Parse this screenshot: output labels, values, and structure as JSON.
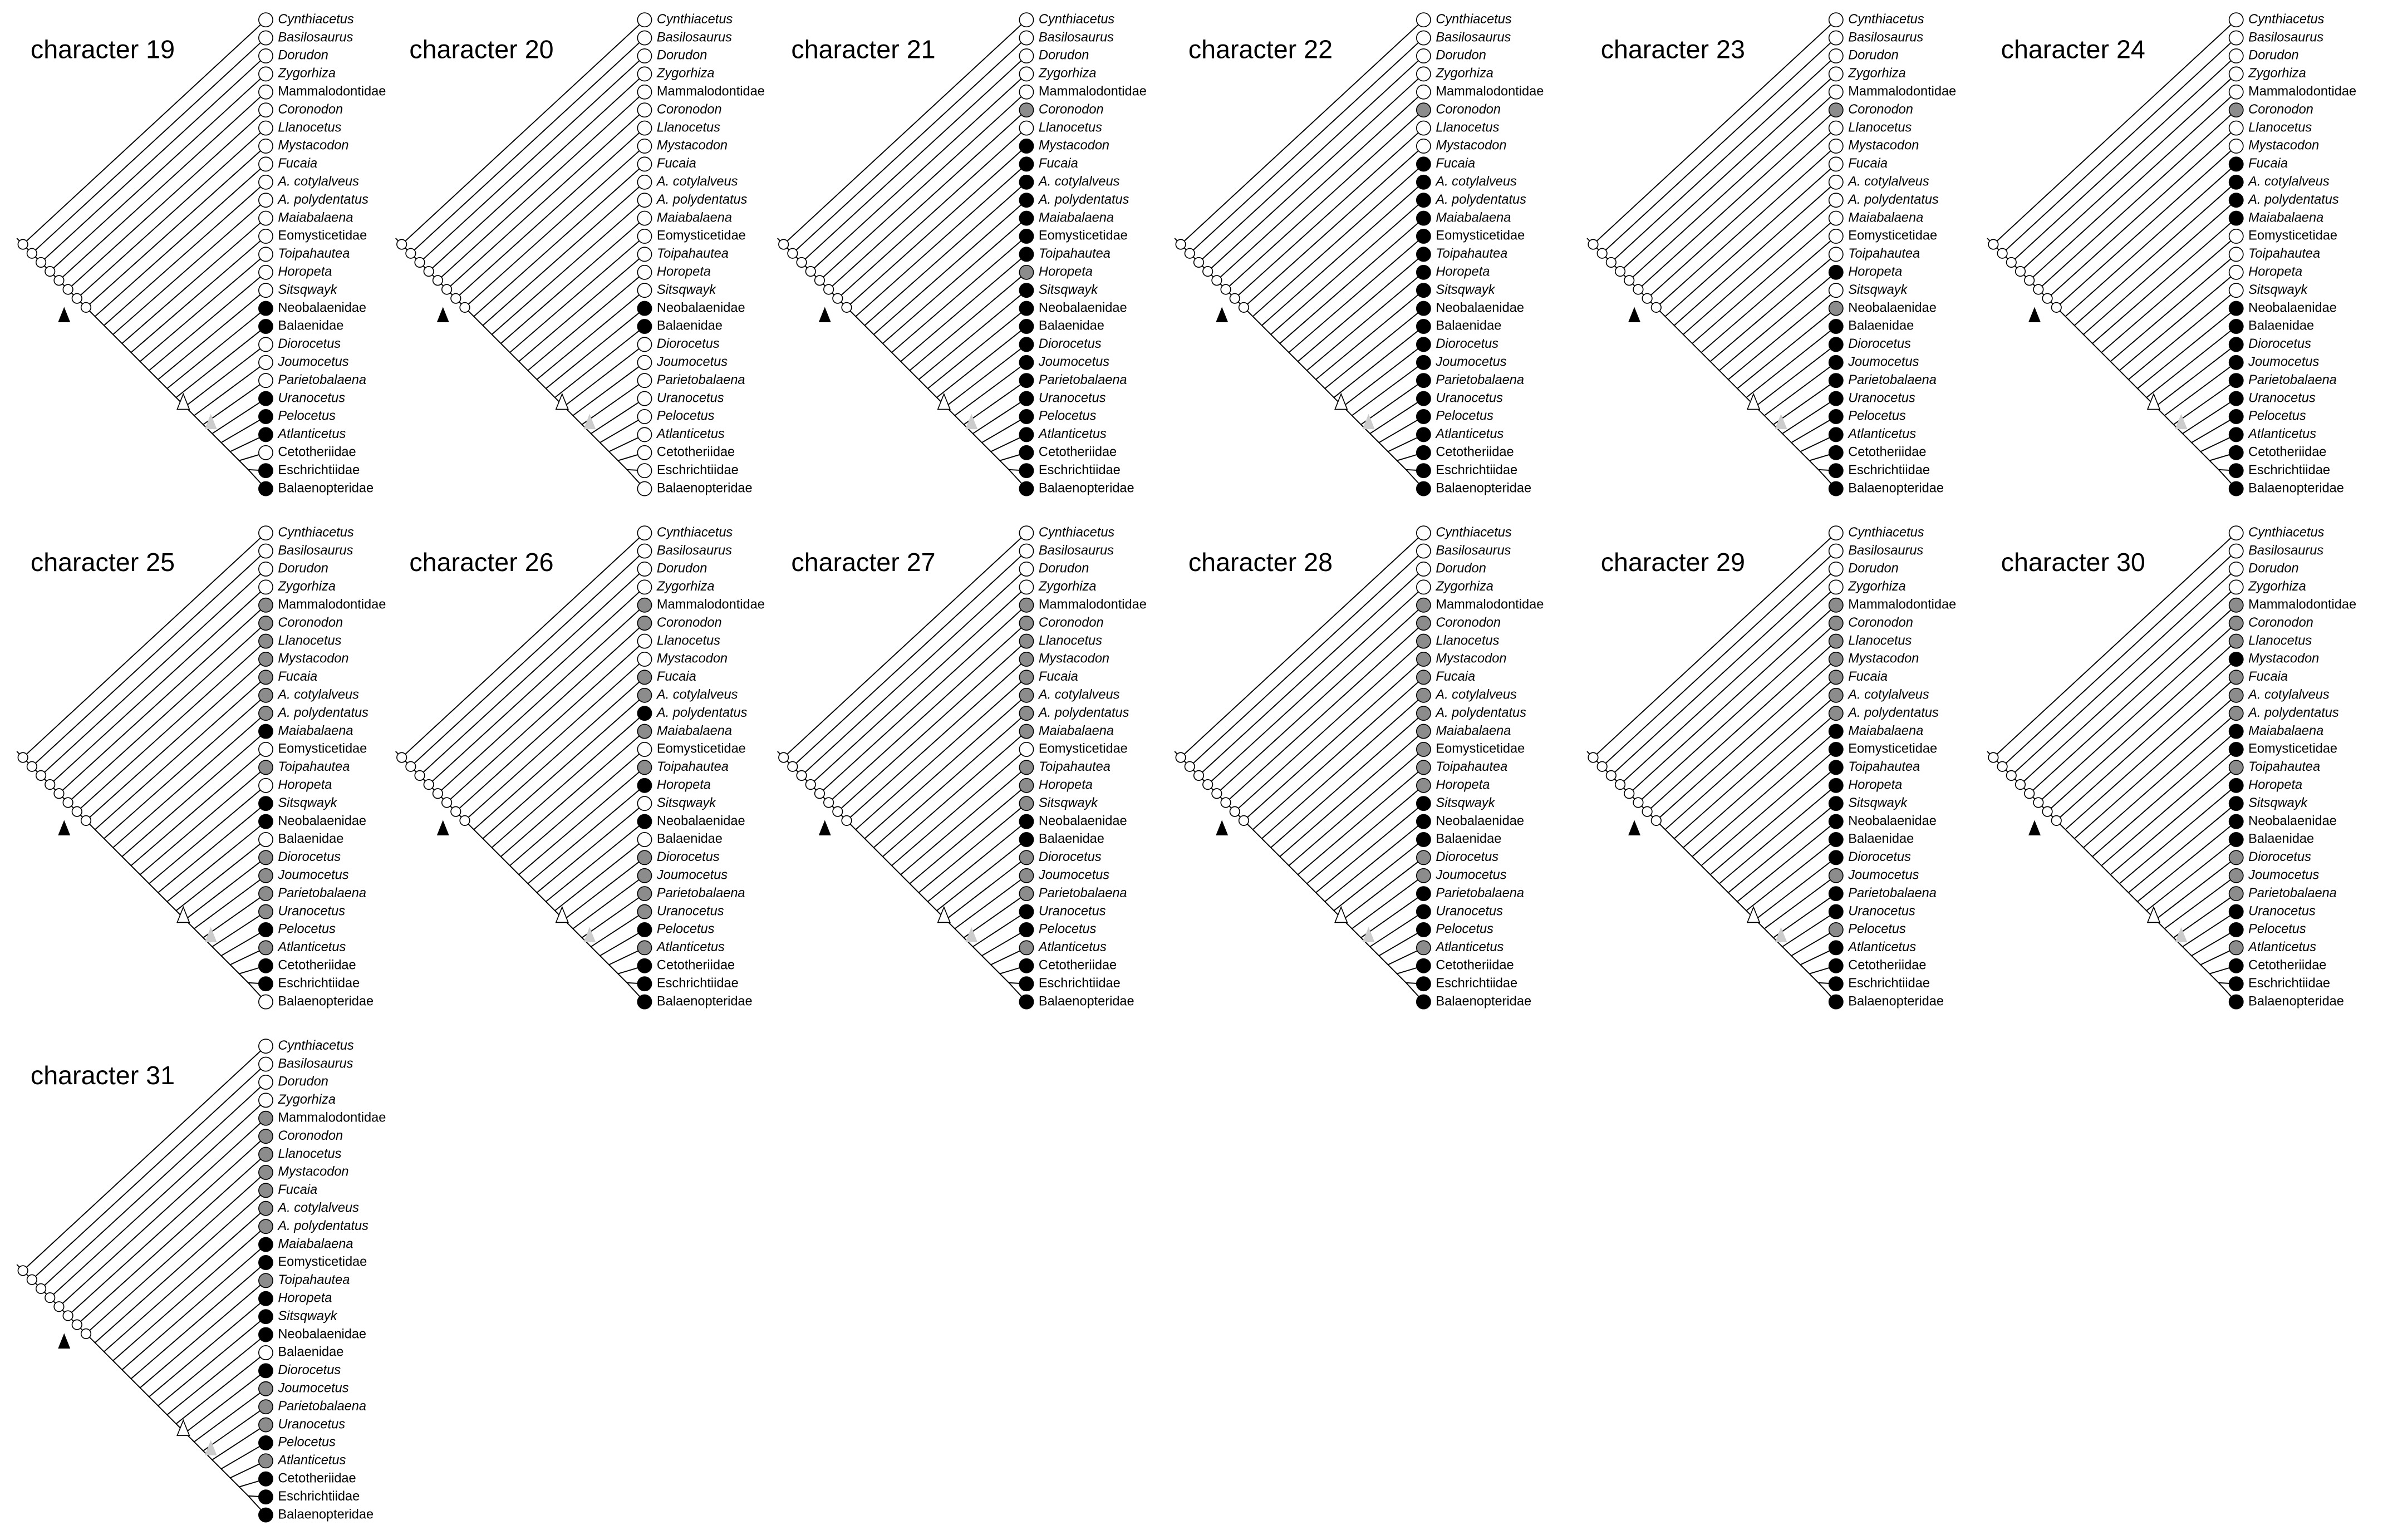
{
  "taxa": [
    {
      "name": "Cynthiacetus",
      "italic": true
    },
    {
      "name": "Basilosaurus",
      "italic": true
    },
    {
      "name": "Dorudon",
      "italic": true
    },
    {
      "name": "Zygorhiza",
      "italic": true
    },
    {
      "name": "Mammalodontidae",
      "italic": false
    },
    {
      "name": "Coronodon",
      "italic": true
    },
    {
      "name": "Llanocetus",
      "italic": true
    },
    {
      "name": "Mystacodon",
      "italic": true
    },
    {
      "name": "Fucaia",
      "italic": true
    },
    {
      "name": "A. cotylalveus",
      "italic": true
    },
    {
      "name": "A. polydentatus",
      "italic": true
    },
    {
      "name": "Maiabalaena",
      "italic": true
    },
    {
      "name": "Eomysticetidae",
      "italic": false
    },
    {
      "name": "Toipahautea",
      "italic": true
    },
    {
      "name": "Horopeta",
      "italic": true
    },
    {
      "name": "Sitsqwayk",
      "italic": true
    },
    {
      "name": "Neobalaenidae",
      "italic": false
    },
    {
      "name": "Balaenidae",
      "italic": false
    },
    {
      "name": "Diorocetus",
      "italic": true
    },
    {
      "name": "Joumocetus",
      "italic": true
    },
    {
      "name": "Parietobalaena",
      "italic": true
    },
    {
      "name": "Uranocetus",
      "italic": true
    },
    {
      "name": "Pelocetus",
      "italic": true
    },
    {
      "name": "Atlanticetus",
      "italic": true
    },
    {
      "name": "Cetotheriidae",
      "italic": false
    },
    {
      "name": "Eschrichtiidae",
      "italic": false
    },
    {
      "name": "Balaenopteridae",
      "italic": false
    }
  ],
  "state_colors": {
    "w": "#ffffff",
    "b": "#000000",
    "g": "#8c8c8c"
  },
  "panels": [
    {
      "title": "character 19",
      "states": "wwwwwwwwwwwwwwwwbbwwwbbbwbb"
    },
    {
      "title": "character 20",
      "states": "wwwwwwwwwwwwwwwwbbwwwwwwwww"
    },
    {
      "title": "character 21",
      "states": "wwwwwgwbbbbbbbgbbbbbbbbbbbb"
    },
    {
      "title": "character 22",
      "states": "wwwwwgwwbbbbbbbbbbbbbbbbbbb"
    },
    {
      "title": "character 23",
      "states": "wwwwwgwwwwwwwwbwgbbbbbbbbbb"
    },
    {
      "title": "character 24",
      "states": "wwwwwgwwbbbbwwwwbbbbbbbbbbb"
    },
    {
      "title": "character 25",
      "states": "wwwwgggggggbwgwbbwggggbgbbw"
    },
    {
      "title": "character 26",
      "states": "wwwwggwwggbgwgbwbwggggbgbbb"
    },
    {
      "title": "character 27",
      "states": "wwwwggggggggwgggbbgggbbgbbb"
    },
    {
      "title": "character 28",
      "states": "wwwwgggggggggggbbbggbbbgbbb"
    },
    {
      "title": "character 29",
      "states": "wwwwgggggggbbbbbbbbgbbgbbbb"
    },
    {
      "title": "character 30",
      "states": "wwwwgggbgggbbgbbbbgggbbgbbb"
    },
    {
      "title": "character 31",
      "states": "wwwwgggggggbbgbbbwbgggbgbbb"
    }
  ]
}
